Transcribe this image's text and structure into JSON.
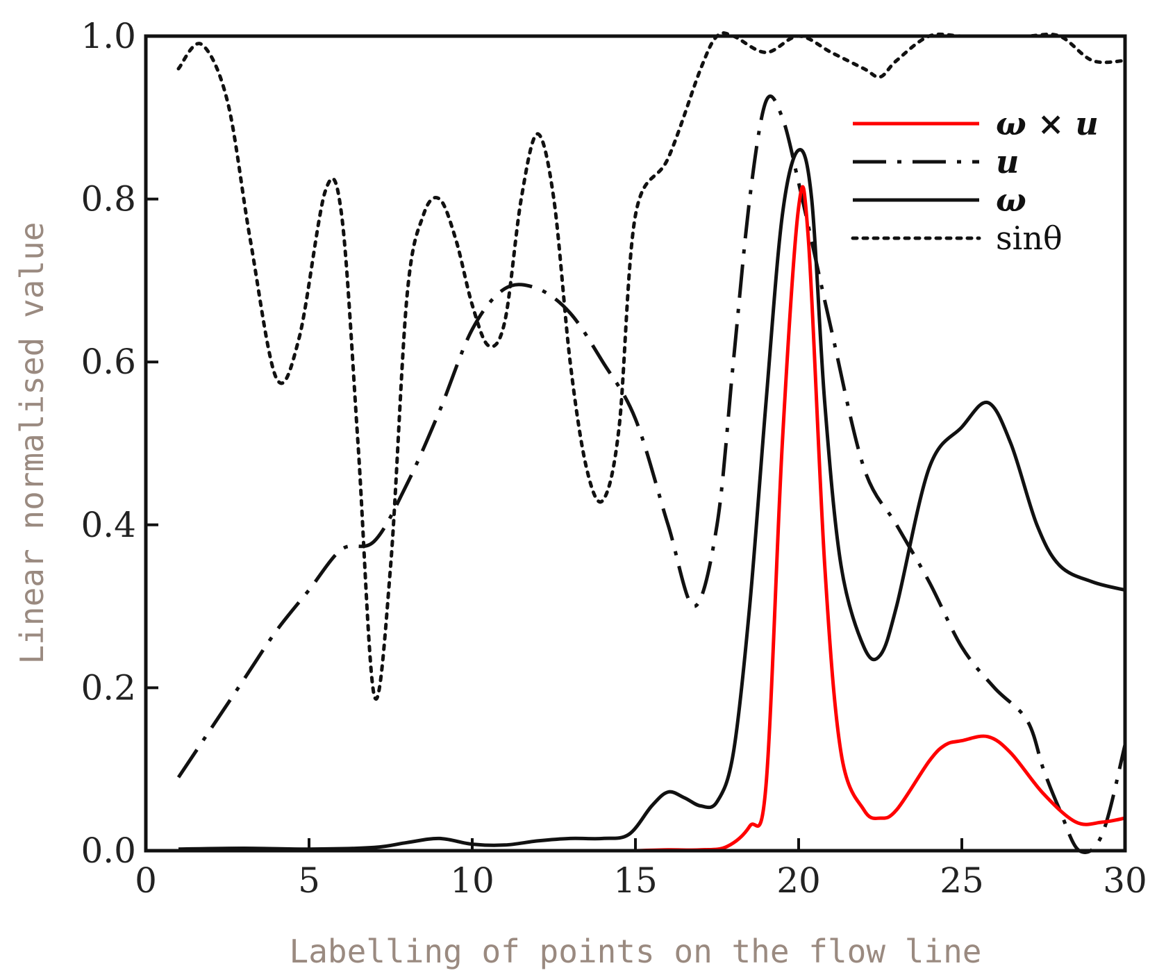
{
  "chart_data": {
    "type": "line",
    "title": "",
    "xlabel": "Labelling of points on the flow line",
    "ylabel": "Linear normalised value",
    "xlim": [
      0,
      30
    ],
    "ylim": [
      0,
      1.0
    ],
    "xticks": [
      0,
      5,
      10,
      15,
      20,
      25,
      30
    ],
    "xtick_labels": [
      "0",
      "5",
      "10",
      "15",
      "20",
      "25",
      "30"
    ],
    "yticks": [
      0,
      0.2,
      0.4,
      0.6,
      0.8,
      1.0
    ],
    "ytick_labels": [
      "0.0",
      "0.2",
      "0.4",
      "0.6",
      "0.8",
      "1.0"
    ],
    "grid": false,
    "legend_position": "top-right",
    "series": [
      {
        "name": "ω × u",
        "color": "#ff0000",
        "dash": "solid",
        "x": [
          15,
          16,
          17,
          17.8,
          18.5,
          19,
          19.5,
          20,
          20.3,
          20.8,
          21.3,
          22,
          22.5,
          23,
          24,
          24.5,
          25,
          25.8,
          26.5,
          27.5,
          28.5,
          29.3,
          30
        ],
        "y": [
          0,
          0.001,
          0.001,
          0.005,
          0.03,
          0.08,
          0.5,
          0.79,
          0.75,
          0.35,
          0.12,
          0.05,
          0.04,
          0.05,
          0.11,
          0.13,
          0.135,
          0.14,
          0.12,
          0.07,
          0.035,
          0.035,
          0.04
        ]
      },
      {
        "name": "u",
        "color": "#111111",
        "dash": "dashdot",
        "x": [
          1,
          2,
          3,
          4,
          5,
          6,
          7,
          8,
          9,
          10,
          11,
          12,
          13,
          14,
          15,
          16,
          16.8,
          17.5,
          18,
          18.5,
          19,
          19.5,
          20,
          20.5,
          21,
          22,
          23,
          24,
          25,
          26,
          27,
          27.5,
          28,
          28.6,
          29.3,
          30
        ],
        "y": [
          0.09,
          0.15,
          0.21,
          0.27,
          0.32,
          0.37,
          0.38,
          0.45,
          0.54,
          0.64,
          0.69,
          0.69,
          0.66,
          0.6,
          0.53,
          0.4,
          0.3,
          0.4,
          0.6,
          0.8,
          0.92,
          0.9,
          0.82,
          0.73,
          0.64,
          0.47,
          0.4,
          0.33,
          0.25,
          0.2,
          0.16,
          0.1,
          0.05,
          0.0,
          0.02,
          0.13
        ]
      },
      {
        "name": "ω",
        "color": "#111111",
        "dash": "solid",
        "x": [
          1,
          3,
          5,
          7,
          8,
          9,
          10,
          11,
          12,
          13,
          14,
          14.8,
          15.5,
          16,
          16.5,
          17,
          17.5,
          18,
          18.5,
          19,
          19.5,
          20,
          20.4,
          20.8,
          21.3,
          22,
          22.5,
          23,
          24,
          25,
          25.8,
          26.5,
          27.3,
          28,
          29,
          30
        ],
        "y": [
          0.002,
          0.003,
          0.002,
          0.004,
          0.01,
          0.015,
          0.008,
          0.007,
          0.012,
          0.015,
          0.015,
          0.02,
          0.055,
          0.072,
          0.065,
          0.055,
          0.06,
          0.12,
          0.3,
          0.55,
          0.78,
          0.86,
          0.8,
          0.55,
          0.35,
          0.25,
          0.24,
          0.3,
          0.47,
          0.52,
          0.55,
          0.5,
          0.4,
          0.35,
          0.33,
          0.32
        ]
      },
      {
        "name": "sinθ",
        "color": "#111111",
        "dash": "dotted",
        "x": [
          1,
          1.7,
          2.5,
          3.2,
          4,
          4.7,
          5.5,
          6,
          6.5,
          7,
          7.5,
          8,
          8.5,
          9,
          9.5,
          10,
          10.5,
          11,
          11.5,
          12,
          12.5,
          13,
          13.5,
          14,
          14.5,
          15,
          16,
          17,
          17.5,
          18,
          19,
          20,
          21,
          22,
          22.5,
          23,
          24,
          25,
          26,
          27,
          28,
          29,
          30
        ],
        "y": [
          0.96,
          0.99,
          0.92,
          0.75,
          0.58,
          0.63,
          0.81,
          0.78,
          0.5,
          0.19,
          0.35,
          0.68,
          0.78,
          0.8,
          0.75,
          0.67,
          0.62,
          0.65,
          0.8,
          0.88,
          0.8,
          0.6,
          0.47,
          0.43,
          0.52,
          0.78,
          0.85,
          0.96,
          1.0,
          1.0,
          0.98,
          1.0,
          0.98,
          0.96,
          0.95,
          0.97,
          1.0,
          1.0,
          1.0,
          1.0,
          1.0,
          0.97,
          0.97
        ]
      }
    ]
  }
}
